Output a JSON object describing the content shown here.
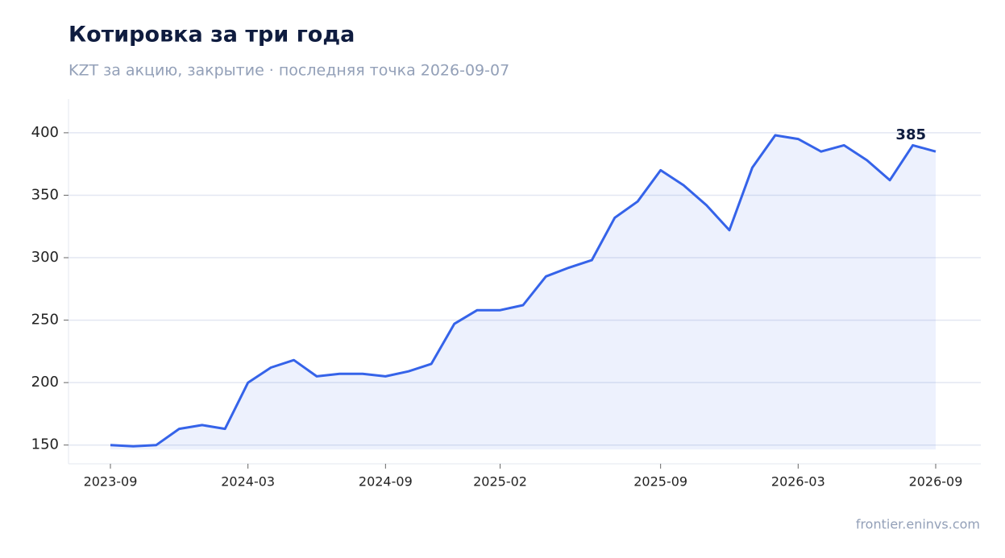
{
  "chart_data": {
    "type": "line",
    "title": "Котировка за три года",
    "subtitle": "KZT за акцию, закрытие · последняя точка 2026-09-07",
    "footer": "frontier.eninvs.com",
    "x": [
      "2023-09",
      "2023-10",
      "2023-11",
      "2023-12",
      "2024-01",
      "2024-02",
      "2024-03",
      "2024-04",
      "2024-05",
      "2024-06",
      "2024-07",
      "2024-08",
      "2024-09",
      "2024-10",
      "2024-11",
      "2024-12",
      "2025-01",
      "2025-02",
      "2025-03",
      "2025-04",
      "2025-05",
      "2025-06",
      "2025-07",
      "2025-08",
      "2025-09",
      "2025-10",
      "2025-11",
      "2025-12",
      "2026-01",
      "2026-02",
      "2026-03",
      "2026-04",
      "2026-05",
      "2026-06",
      "2026-07",
      "2026-08",
      "2026-09"
    ],
    "values": [
      150,
      149,
      150,
      163,
      166,
      163,
      200,
      212,
      218,
      205,
      207,
      207,
      205,
      209,
      215,
      247,
      258,
      258,
      262,
      285,
      292,
      298,
      332,
      345,
      370,
      358,
      342,
      322,
      372,
      398,
      395,
      385,
      390,
      378,
      362,
      390,
      385
    ],
    "color": "#3563e9",
    "ylim": [
      135,
      427
    ],
    "yticks": [
      150,
      200,
      250,
      300,
      350,
      400
    ],
    "xticks": [
      "2023-09",
      "2024-03",
      "2024-09",
      "2025-02",
      "2025-09",
      "2026-03",
      "2026-09"
    ],
    "grid": true
  }
}
